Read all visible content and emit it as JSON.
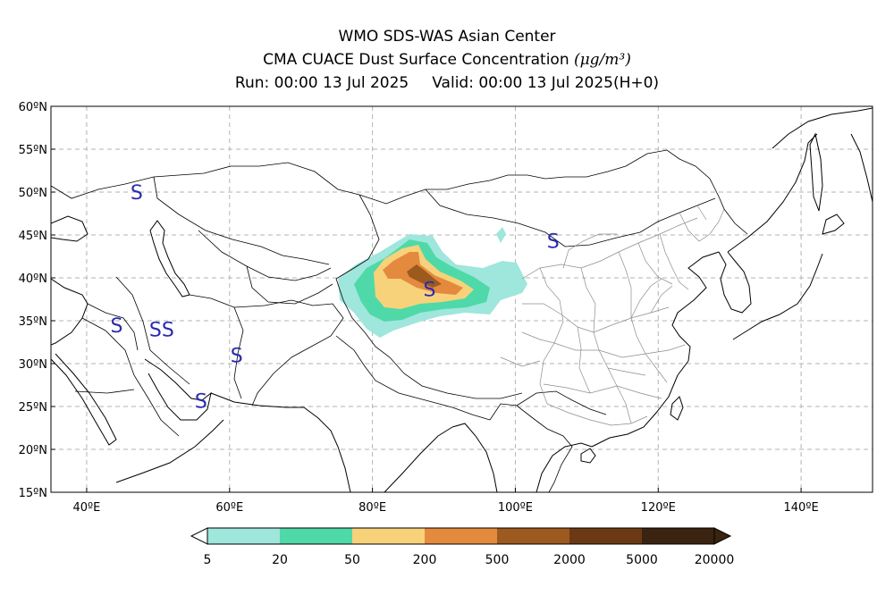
{
  "header": {
    "title_line1": "WMO SDS-WAS Asian Center",
    "title_line2": "CMA CUACE Dust Surface Concentration",
    "unit": "(μg/m³)",
    "run_label": "Run: 00:00 13 Jul 2025",
    "valid_label": "Valid: 00:00 13 Jul 2025(H+0)"
  },
  "map": {
    "lon_range": [
      35,
      150
    ],
    "lat_range": [
      15,
      60
    ],
    "lat_ticks": [
      {
        "value": 60,
        "label": "60ºN"
      },
      {
        "value": 55,
        "label": "55ºN"
      },
      {
        "value": 50,
        "label": "50ºN"
      },
      {
        "value": 45,
        "label": "45ºN"
      },
      {
        "value": 40,
        "label": "40ºN"
      },
      {
        "value": 35,
        "label": "35ºN"
      },
      {
        "value": 30,
        "label": "30ºN"
      },
      {
        "value": 25,
        "label": "25ºN"
      },
      {
        "value": 20,
        "label": "20ºN"
      },
      {
        "value": 15,
        "label": "15ºN"
      }
    ],
    "lon_ticks": [
      {
        "value": 40,
        "label": "40ºE"
      },
      {
        "value": 60,
        "label": "60ºE"
      },
      {
        "value": 80,
        "label": "80ºE"
      },
      {
        "value": 100,
        "label": "100ºE"
      },
      {
        "value": 120,
        "label": "120ºE"
      },
      {
        "value": 140,
        "label": "140ºE"
      }
    ],
    "gridlines": true,
    "markers": [
      {
        "label": "S",
        "lon": 44.2,
        "lat": 34.5
      },
      {
        "label": "SS",
        "lon": 50.5,
        "lat": 34.0
      },
      {
        "label": "S",
        "lon": 61.0,
        "lat": 31.0
      },
      {
        "label": "S",
        "lon": 56.0,
        "lat": 25.7
      },
      {
        "label": "S",
        "lon": 88.0,
        "lat": 38.7
      },
      {
        "label": "S",
        "lon": 105.3,
        "lat": 44.3
      },
      {
        "label": "S",
        "lon": 47.0,
        "lat": 50.0
      }
    ]
  },
  "colorbar": {
    "levels": [
      "5",
      "20",
      "50",
      "200",
      "500",
      "2000",
      "5000",
      "20000"
    ],
    "colors": [
      "#9fe6dc",
      "#4fd9a8",
      "#f7d27a",
      "#e48a3e",
      "#9c5a1f",
      "#6b3a14",
      "#3a2310"
    ]
  }
}
